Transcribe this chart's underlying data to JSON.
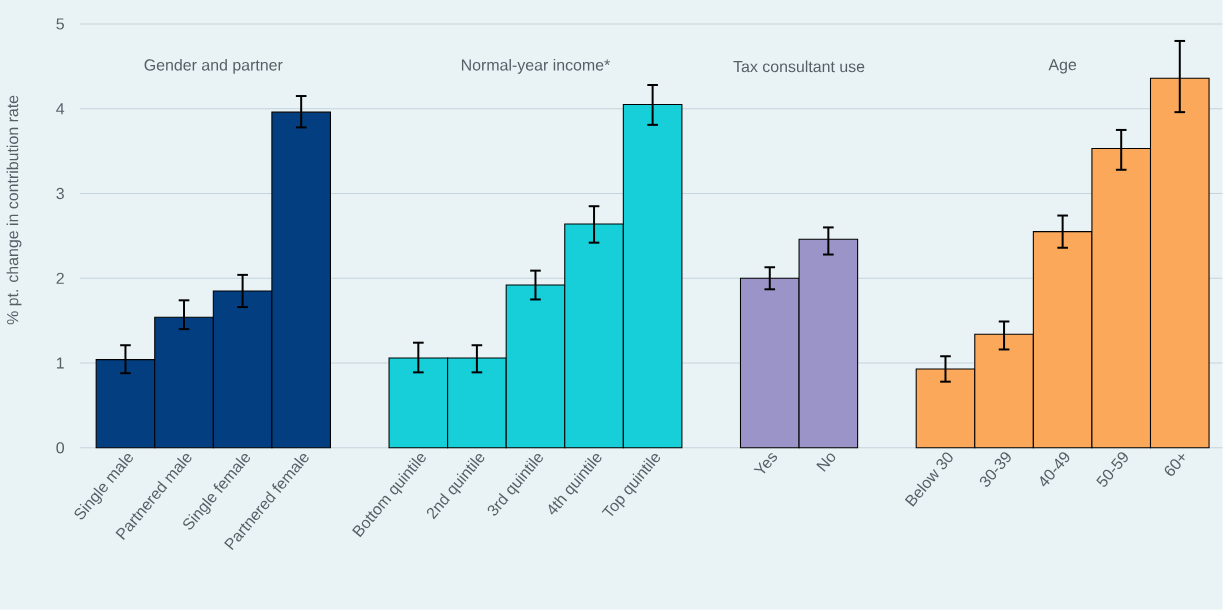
{
  "chart_data": {
    "type": "bar",
    "ylabel": "% pt. change in contribution rate",
    "categories": [
      "Single male",
      "Partnered male",
      "Single female",
      "Partnered female",
      null,
      "Bottom quintile",
      "2nd quintile",
      "3rd quintile",
      "4th quintile",
      "Top quintile",
      null,
      "Yes",
      "No",
      null,
      "Below 30",
      "30-39",
      "40-49",
      "50-59",
      "60+"
    ],
    "series": [
      {
        "color": "#033f80",
        "values": [
          1.04,
          1.54,
          1.85,
          3.96,
          null,
          null,
          null,
          null,
          null,
          null,
          null,
          null,
          null,
          null,
          null,
          null,
          null,
          null,
          null
        ],
        "errors": [
          [
            0.88,
            1.21
          ],
          [
            1.4,
            1.74
          ],
          [
            1.66,
            2.04
          ],
          [
            3.78,
            4.15
          ],
          null,
          null,
          null,
          null,
          null,
          null,
          null,
          null,
          null,
          null,
          null,
          null,
          null,
          null,
          null
        ]
      },
      {
        "color": "#17cfd9",
        "values": [
          null,
          null,
          null,
          null,
          null,
          1.06,
          1.06,
          1.92,
          2.64,
          4.05,
          null,
          null,
          null,
          null,
          null,
          null,
          null,
          null,
          null
        ],
        "errors": [
          null,
          null,
          null,
          null,
          null,
          [
            0.89,
            1.24
          ],
          [
            0.89,
            1.21
          ],
          [
            1.75,
            2.09
          ],
          [
            2.42,
            2.85
          ],
          [
            3.81,
            4.28
          ],
          null,
          null,
          null,
          null,
          null,
          null,
          null,
          null,
          null
        ]
      },
      {
        "color": "#9b94c8",
        "values": [
          null,
          null,
          null,
          null,
          null,
          null,
          null,
          null,
          null,
          null,
          null,
          2.0,
          2.46,
          null,
          null,
          null,
          null,
          null,
          null
        ],
        "errors": [
          null,
          null,
          null,
          null,
          null,
          null,
          null,
          null,
          null,
          null,
          null,
          [
            1.87,
            2.13
          ],
          [
            2.28,
            2.6
          ],
          null,
          null,
          null,
          null,
          null,
          null
        ]
      },
      {
        "color": "#fba85a",
        "values": [
          null,
          null,
          null,
          null,
          null,
          null,
          null,
          null,
          null,
          null,
          null,
          null,
          null,
          null,
          0.93,
          1.34,
          2.55,
          3.53,
          4.36
        ],
        "errors": [
          null,
          null,
          null,
          null,
          null,
          null,
          null,
          null,
          null,
          null,
          null,
          null,
          null,
          null,
          [
            0.78,
            1.08
          ],
          [
            1.16,
            1.49
          ],
          [
            2.36,
            2.74
          ],
          [
            3.28,
            3.75
          ],
          [
            3.96,
            4.8
          ]
        ]
      }
    ],
    "annotations": [
      "Gender and partner",
      "Normal-year income*",
      "Tax consultant use",
      "Age"
    ],
    "ylim": [
      0,
      5
    ],
    "yticks": [
      0,
      1,
      2,
      3,
      4,
      5
    ],
    "grid": "y"
  }
}
